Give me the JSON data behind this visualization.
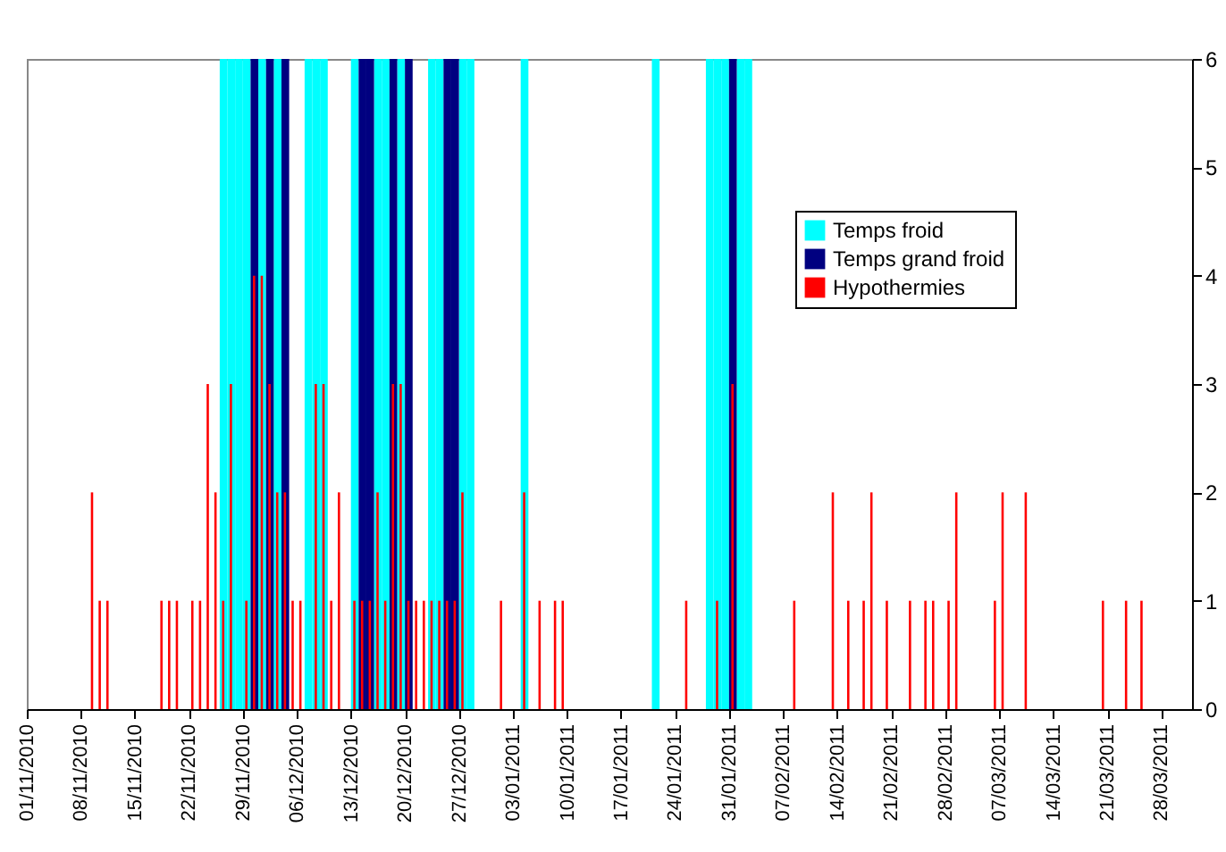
{
  "chart_data": {
    "type": "bar",
    "series": [
      {
        "name": "Temps froid",
        "color": "#00ffff",
        "x": [
          "2010-11-26",
          "2010-11-27",
          "2010-11-28",
          "2010-11-29",
          "2010-12-01",
          "2010-12-03",
          "2010-12-07",
          "2010-12-08",
          "2010-12-09",
          "2010-12-13",
          "2010-12-16",
          "2010-12-17",
          "2010-12-19",
          "2010-12-23",
          "2010-12-24",
          "2010-12-27",
          "2010-12-28",
          "2011-01-04",
          "2011-01-21",
          "2011-01-28",
          "2011-01-29",
          "2011-01-30",
          "2011-02-01",
          "2011-02-02"
        ],
        "values": [
          6,
          6,
          6,
          6,
          6,
          6,
          6,
          6,
          6,
          6,
          6,
          6,
          6,
          6,
          6,
          6,
          6,
          6,
          6,
          6,
          6,
          6,
          6,
          6
        ]
      },
      {
        "name": "Temps grand froid",
        "color": "#000080",
        "x": [
          "2010-11-30",
          "2010-12-02",
          "2010-12-04",
          "2010-12-14",
          "2010-12-15",
          "2010-12-18",
          "2010-12-20",
          "2010-12-25",
          "2010-12-26",
          "2011-01-31"
        ],
        "values": [
          6,
          6,
          6,
          6,
          6,
          6,
          6,
          6,
          6,
          6
        ]
      },
      {
        "name": "Hypothermies",
        "color": "#ff0000",
        "x": [
          "2010-11-09",
          "2010-11-10",
          "2010-11-11",
          "2010-11-18",
          "2010-11-19",
          "2010-11-20",
          "2010-11-22",
          "2010-11-23",
          "2010-11-24",
          "2010-11-25",
          "2010-11-26",
          "2010-11-27",
          "2010-11-29",
          "2010-11-30",
          "2010-12-01",
          "2010-12-02",
          "2010-12-03",
          "2010-12-04",
          "2010-12-05",
          "2010-12-06",
          "2010-12-08",
          "2010-12-09",
          "2010-12-10",
          "2010-12-11",
          "2010-12-13",
          "2010-12-14",
          "2010-12-15",
          "2010-12-16",
          "2010-12-17",
          "2010-12-18",
          "2010-12-19",
          "2010-12-20",
          "2010-12-21",
          "2010-12-22",
          "2010-12-23",
          "2010-12-24",
          "2010-12-25",
          "2010-12-26",
          "2010-12-27",
          "2011-01-01",
          "2011-01-04",
          "2011-01-06",
          "2011-01-08",
          "2011-01-09",
          "2011-01-25",
          "2011-01-29",
          "2011-01-31",
          "2011-02-08",
          "2011-02-13",
          "2011-02-15",
          "2011-02-17",
          "2011-02-18",
          "2011-02-20",
          "2011-02-23",
          "2011-02-25",
          "2011-02-26",
          "2011-02-28",
          "2011-03-01",
          "2011-03-06",
          "2011-03-07",
          "2011-03-10",
          "2011-03-20",
          "2011-03-23",
          "2011-03-25"
        ],
        "values": [
          2,
          1,
          1,
          1,
          1,
          1,
          1,
          1,
          3,
          2,
          1,
          3,
          1,
          4,
          4,
          3,
          2,
          2,
          1,
          1,
          3,
          3,
          1,
          2,
          1,
          1,
          1,
          2,
          1,
          3,
          3,
          1,
          1,
          1,
          1,
          1,
          1,
          1,
          2,
          1,
          2,
          1,
          1,
          1,
          1,
          1,
          3,
          1,
          2,
          1,
          1,
          2,
          1,
          1,
          1,
          1,
          1,
          2,
          1,
          2,
          2,
          1,
          1,
          1
        ]
      }
    ],
    "xlim": [
      "2010-11-01",
      "2011-04-01"
    ],
    "xticks": [
      {
        "value": "2010-11-01",
        "label": "01/11/2010"
      },
      {
        "value": "2010-11-08",
        "label": "08/11/2010"
      },
      {
        "value": "2010-11-15",
        "label": "15/11/2010"
      },
      {
        "value": "2010-11-22",
        "label": "22/11/2010"
      },
      {
        "value": "2010-11-29",
        "label": "29/11/2010"
      },
      {
        "value": "2010-12-06",
        "label": "06/12/2010"
      },
      {
        "value": "2010-12-13",
        "label": "13/12/2010"
      },
      {
        "value": "2010-12-20",
        "label": "20/12/2010"
      },
      {
        "value": "2010-12-27",
        "label": "27/12/2010"
      },
      {
        "value": "2011-01-03",
        "label": "03/01/2011"
      },
      {
        "value": "2011-01-10",
        "label": "10/01/2011"
      },
      {
        "value": "2011-01-17",
        "label": "17/01/2011"
      },
      {
        "value": "2011-01-24",
        "label": "24/01/2011"
      },
      {
        "value": "2011-01-31",
        "label": "31/01/2011"
      },
      {
        "value": "2011-02-07",
        "label": "07/02/2011"
      },
      {
        "value": "2011-02-14",
        "label": "14/02/2011"
      },
      {
        "value": "2011-02-21",
        "label": "21/02/2011"
      },
      {
        "value": "2011-02-28",
        "label": "28/02/2011"
      },
      {
        "value": "2011-03-07",
        "label": "07/03/2011"
      },
      {
        "value": "2011-03-14",
        "label": "14/03/2011"
      },
      {
        "value": "2011-03-21",
        "label": "21/03/2011"
      },
      {
        "value": "2011-03-28",
        "label": "28/03/2011"
      }
    ],
    "ylim": [
      0,
      6
    ],
    "yticks": [
      0,
      1,
      2,
      3,
      4,
      5,
      6
    ],
    "legend": "top right"
  }
}
